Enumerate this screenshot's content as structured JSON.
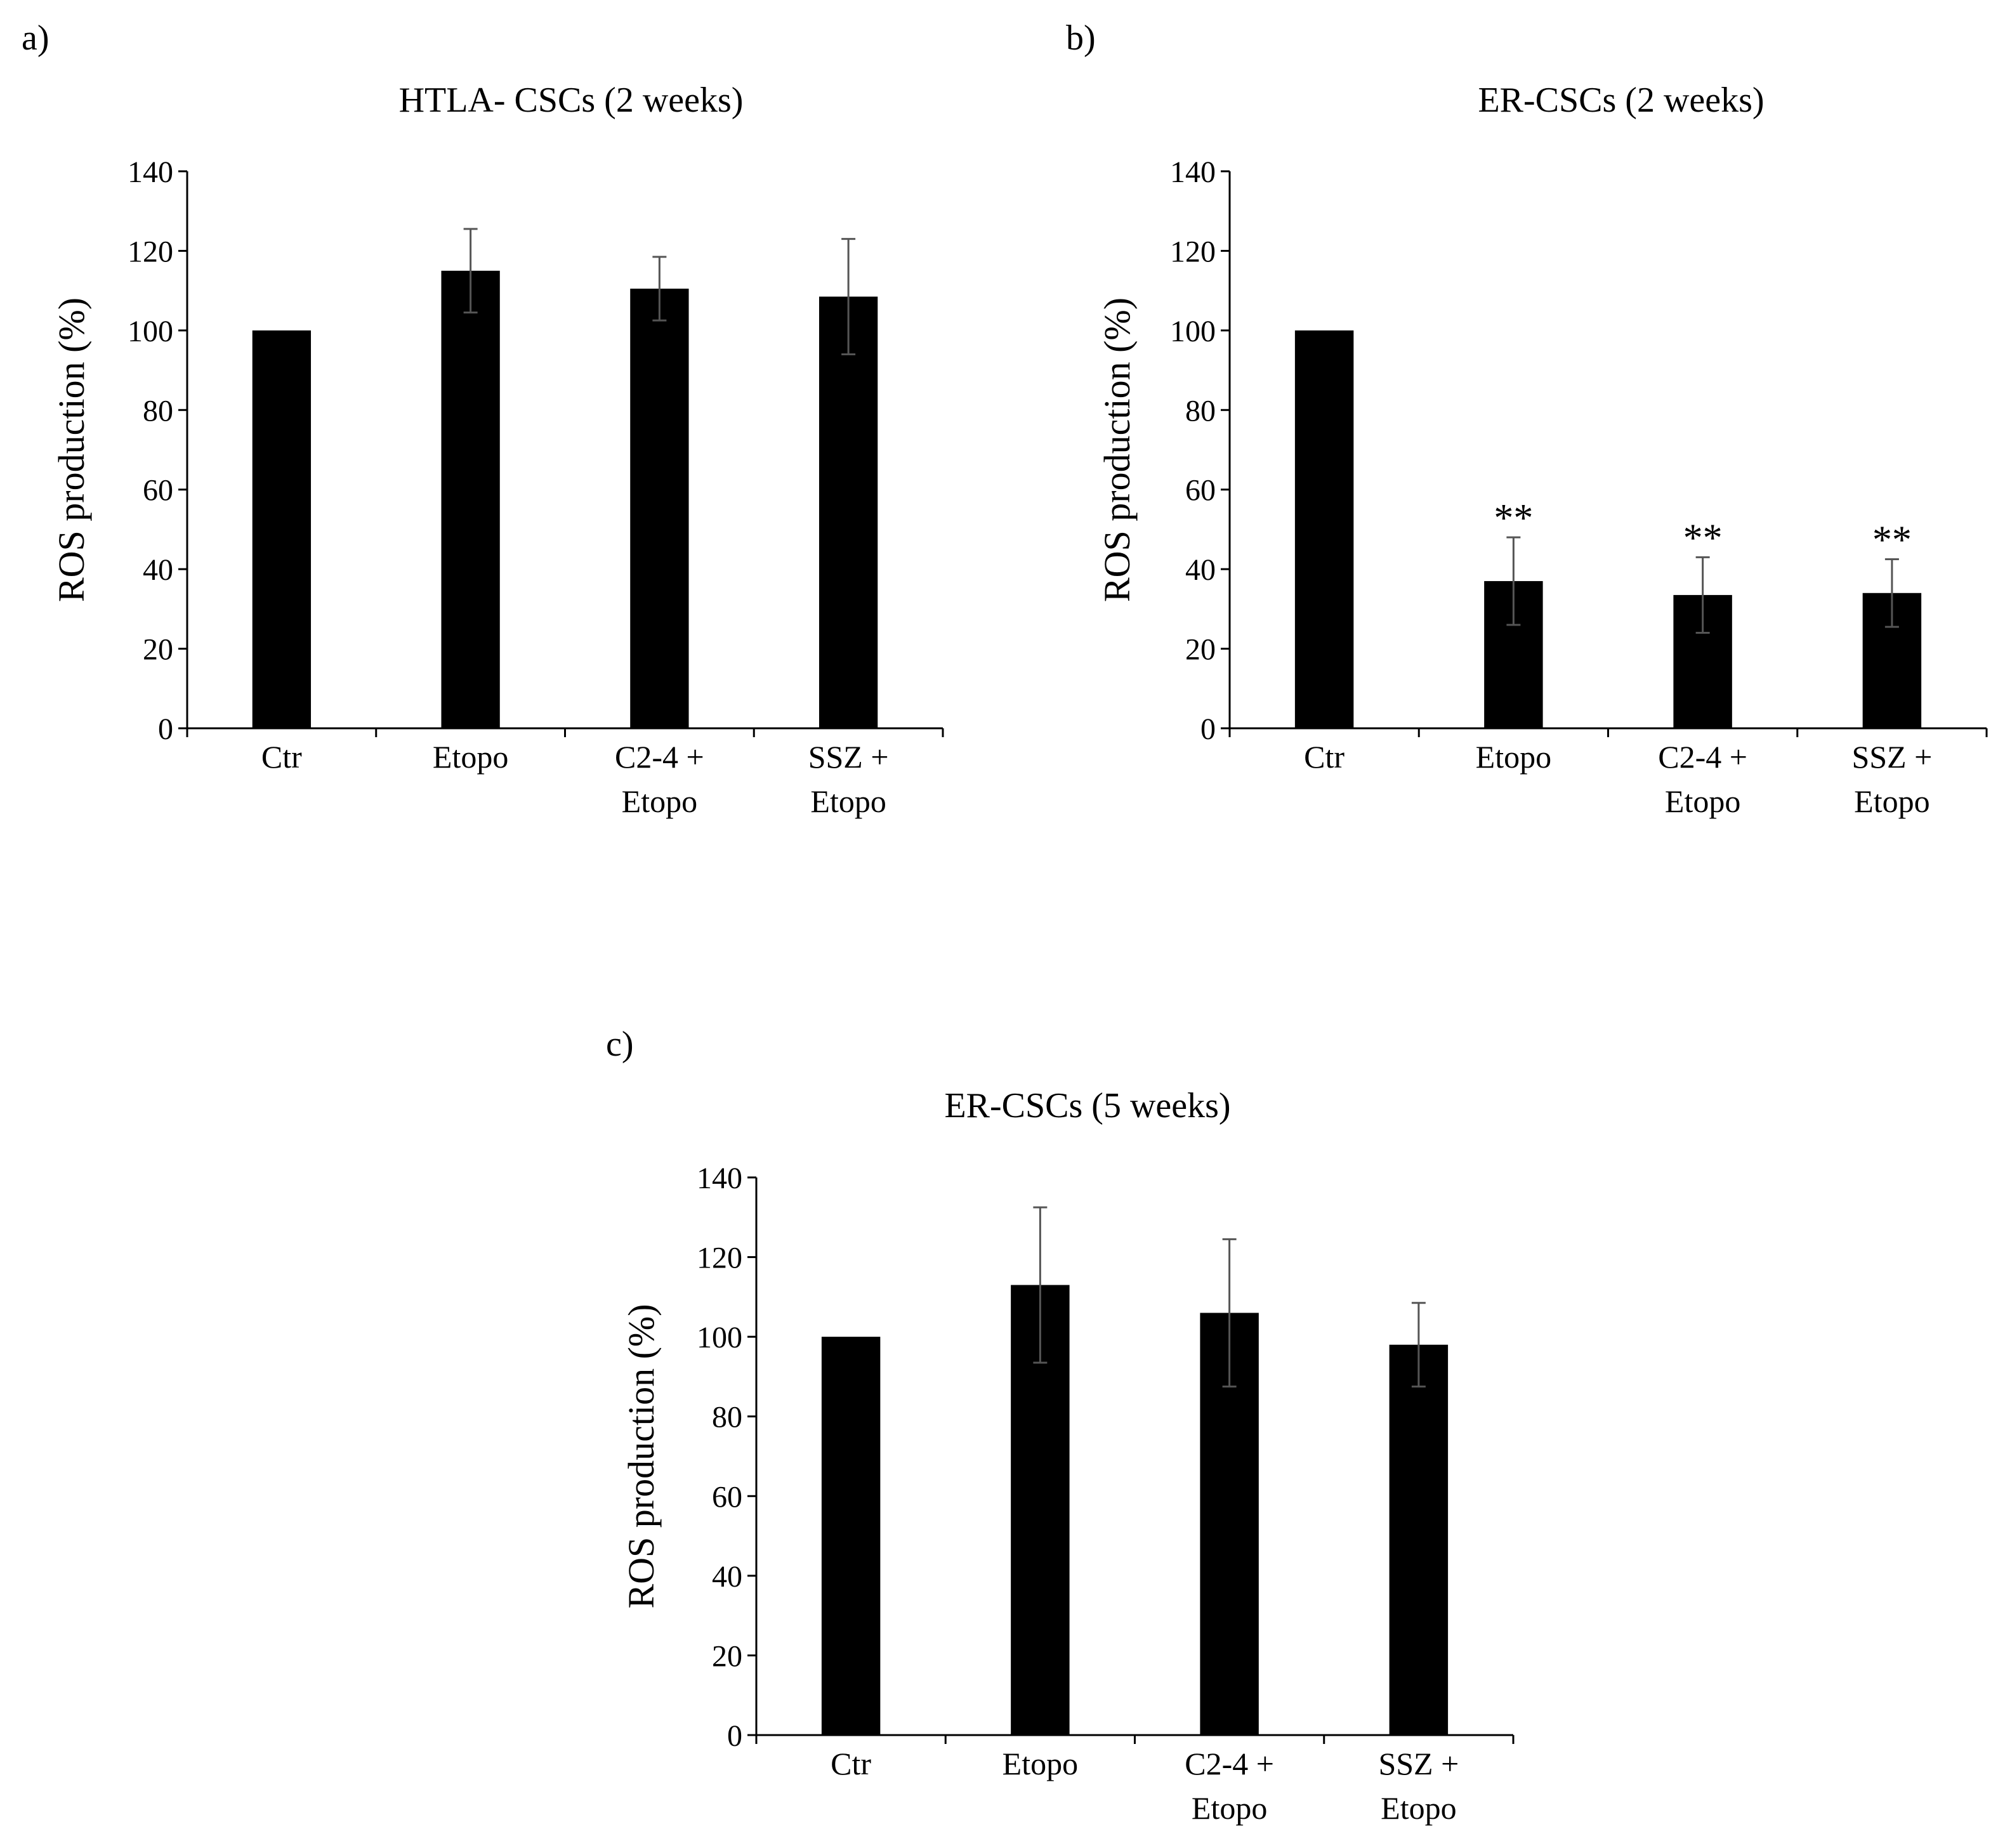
{
  "figure": {
    "panels": [
      {
        "label": "a)"
      },
      {
        "label": "b)"
      },
      {
        "label": "c)"
      }
    ]
  },
  "colors": {
    "bar": "#000000",
    "error_bar": "#555555",
    "axis": "#000000",
    "background": "#ffffff"
  },
  "chart_data": [
    {
      "type": "bar",
      "title": "HTLA- CSCs (2 weeks)",
      "xlabel": "",
      "ylabel": "ROS production (%)",
      "ylim": [
        0,
        140
      ],
      "yticks": [
        0,
        20,
        40,
        60,
        80,
        100,
        120,
        140
      ],
      "categories": [
        [
          "Ctr"
        ],
        [
          "Etopo"
        ],
        [
          "C2-4 +",
          "Etopo"
        ],
        [
          "SSZ +",
          "Etopo"
        ]
      ],
      "values": [
        100,
        115,
        110.5,
        108.5
      ],
      "errors": [
        0,
        10.5,
        8,
        14.5
      ],
      "annotations": [
        "",
        "",
        "",
        ""
      ]
    },
    {
      "type": "bar",
      "title": "ER-CSCs (2 weeks)",
      "xlabel": "",
      "ylabel": "ROS production (%)",
      "ylim": [
        0,
        140
      ],
      "yticks": [
        0,
        20,
        40,
        60,
        80,
        100,
        120,
        140
      ],
      "categories": [
        [
          "Ctr"
        ],
        [
          "Etopo"
        ],
        [
          "C2-4 +",
          "Etopo"
        ],
        [
          "SSZ +",
          "Etopo"
        ]
      ],
      "values": [
        100,
        37,
        33.5,
        34
      ],
      "errors": [
        0,
        11,
        9.5,
        8.5
      ],
      "annotations": [
        "",
        "**",
        "**",
        "**"
      ]
    },
    {
      "type": "bar",
      "title": "ER-CSCs (5 weeks)",
      "xlabel": "",
      "ylabel": "ROS production (%)",
      "ylim": [
        0,
        140
      ],
      "yticks": [
        0,
        20,
        40,
        60,
        80,
        100,
        120,
        140
      ],
      "categories": [
        [
          "Ctr"
        ],
        [
          "Etopo"
        ],
        [
          "C2-4 +",
          "Etopo"
        ],
        [
          "SSZ +",
          "Etopo"
        ]
      ],
      "values": [
        100,
        113,
        106,
        98
      ],
      "errors": [
        0,
        19.5,
        18.5,
        10.5
      ],
      "annotations": [
        "",
        "",
        "",
        ""
      ]
    }
  ]
}
